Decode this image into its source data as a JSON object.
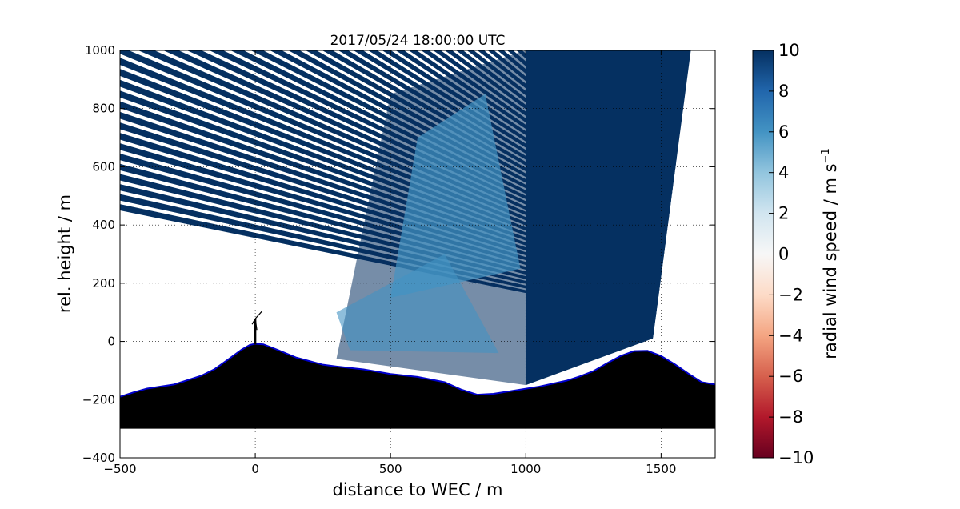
{
  "chart_data": {
    "type": "heatmap",
    "title": "2017/05/24 18:00:00 UTC",
    "xlabel": "distance to WEC / m",
    "ylabel": "rel. height / m",
    "xlim": [
      -500,
      1700
    ],
    "ylim": [
      -400,
      1000
    ],
    "xticks": [
      -500,
      0,
      500,
      1000,
      1500
    ],
    "yticks": [
      -400,
      -200,
      0,
      200,
      400,
      600,
      800,
      1000
    ],
    "grid": true,
    "colorbar": {
      "label": "radial wind speed / m s",
      "label_superscript": "−1",
      "vmin": -10,
      "vmax": 10,
      "ticks": [
        10,
        8,
        6,
        4,
        2,
        0,
        -2,
        -4,
        -6,
        -8,
        -10
      ],
      "colormap": "RdBu",
      "colors": [
        "#67001f",
        "#b2182b",
        "#d6604d",
        "#f4a582",
        "#fddbc7",
        "#f7f7f7",
        "#d1e5f0",
        "#92c5de",
        "#4393c3",
        "#2166ac",
        "#053061"
      ]
    },
    "scan": {
      "origin_x": 0,
      "origin_y": -10,
      "max_range_m": 1950,
      "elevation_min_deg": 0,
      "elevation_max_deg": 30.5,
      "range_limit_line": [
        [
          1470,
          10
        ],
        [
          1610,
          1000
        ]
      ],
      "dominant_speed": 10,
      "transition_speed": 5
    },
    "terrain": {
      "fill_color": "#000000",
      "outline_color": "#0000cc",
      "base_height": -300,
      "profile": [
        [
          -500,
          -190
        ],
        [
          -450,
          -175
        ],
        [
          -400,
          -162
        ],
        [
          -300,
          -148
        ],
        [
          -200,
          -118
        ],
        [
          -150,
          -95
        ],
        [
          -100,
          -62
        ],
        [
          -50,
          -28
        ],
        [
          -20,
          -12
        ],
        [
          0,
          -8
        ],
        [
          30,
          -10
        ],
        [
          80,
          -28
        ],
        [
          150,
          -55
        ],
        [
          250,
          -80
        ],
        [
          300,
          -86
        ],
        [
          400,
          -96
        ],
        [
          500,
          -112
        ],
        [
          600,
          -122
        ],
        [
          700,
          -140
        ],
        [
          760,
          -165
        ],
        [
          820,
          -183
        ],
        [
          880,
          -180
        ],
        [
          950,
          -170
        ],
        [
          1050,
          -155
        ],
        [
          1150,
          -135
        ],
        [
          1200,
          -120
        ],
        [
          1250,
          -102
        ],
        [
          1300,
          -75
        ],
        [
          1350,
          -50
        ],
        [
          1400,
          -33
        ],
        [
          1450,
          -32
        ],
        [
          1500,
          -50
        ],
        [
          1550,
          -78
        ],
        [
          1600,
          -110
        ],
        [
          1650,
          -140
        ],
        [
          1700,
          -148
        ]
      ]
    },
    "wec_position": [
      0,
      -10
    ]
  }
}
